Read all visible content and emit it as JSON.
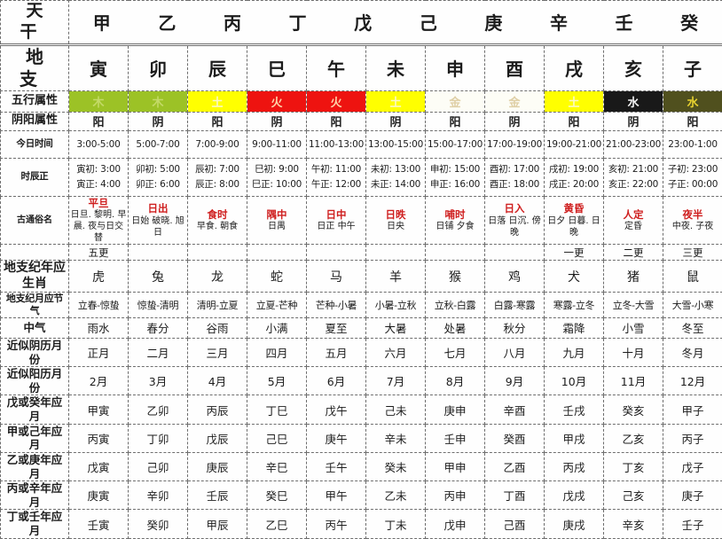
{
  "accent_colors": {
    "red_title": "#cf1f1f",
    "border": "#6e6e6e",
    "wood_bg": "#9cc226",
    "wood_fg": "#c4da68",
    "earth_bg": "#ffff00",
    "earth_fg": "#fbf8c8",
    "fire_bg": "#ee1310",
    "fire_fg": "#ffd2a8",
    "metal_bg": "#fdfdf6",
    "metal_fg": "#dfcfa5",
    "water1_bg": "#191919",
    "water1_fg": "#f5f5f5",
    "water2_bg": "#50501e",
    "water2_fg": "#e9d32f"
  },
  "table": {
    "stems_label": "天干",
    "stems": [
      "甲",
      "乙",
      "丙",
      "丁",
      "戊",
      "己",
      "庚",
      "辛",
      "壬",
      "癸"
    ],
    "branches_label": "地支",
    "branches": [
      "寅",
      "卯",
      "辰",
      "巳",
      "午",
      "未",
      "申",
      "酉",
      "戌",
      "亥",
      "子"
    ],
    "rows": [
      {
        "kind": "element",
        "label": "五行属性",
        "cells": [
          {
            "text": "木",
            "bg": "#9cc226",
            "fg": "#c4da68"
          },
          {
            "text": "木",
            "bg": "#9cc226",
            "fg": "#c4da68"
          },
          {
            "text": "土",
            "bg": "#ffff00",
            "fg": "#fbf8c8"
          },
          {
            "text": "火",
            "bg": "#ee1310",
            "fg": "#ffd2a8"
          },
          {
            "text": "火",
            "bg": "#ee1310",
            "fg": "#ffd2a8"
          },
          {
            "text": "土",
            "bg": "#ffff00",
            "fg": "#fbf8c8"
          },
          {
            "text": "金",
            "bg": "#fdfdf6",
            "fg": "#dfcfa5"
          },
          {
            "text": "金",
            "bg": "#fdfdf6",
            "fg": "#dfcfa5"
          },
          {
            "text": "土",
            "bg": "#ffff00",
            "fg": "#fbf8c8"
          },
          {
            "text": "水",
            "bg": "#191919",
            "fg": "#f5f5f5"
          },
          {
            "text": "水",
            "bg": "#50501e",
            "fg": "#e9d32f"
          }
        ]
      },
      {
        "kind": "yinyang",
        "label": "阴阳属性",
        "cells": [
          "阳",
          "阴",
          "阳",
          "阴",
          "阳",
          "阴",
          "阳",
          "阴",
          "阳",
          "阴",
          "阳"
        ]
      },
      {
        "kind": "time",
        "label": "今日时间",
        "cells": [
          "3:00-5:00",
          "5:00-7:00",
          "7:00-9:00",
          "9:00-11:00",
          "11:00-13:00",
          "13:00-15:00",
          "15:00-17:00",
          "17:00-19:00",
          "19:00-21:00",
          "21:00-23:00",
          "23:00-1:00"
        ]
      },
      {
        "kind": "shichen",
        "label": "时辰正",
        "cells": [
          {
            "l1": "寅初: 3:00",
            "l2": "寅正: 4:00"
          },
          {
            "l1": "卯初: 5:00",
            "l2": "卯正: 6:00"
          },
          {
            "l1": "辰初: 7:00",
            "l2": "辰正: 8:00"
          },
          {
            "l1": "巳初: 9:00",
            "l2": "巳正: 10:00"
          },
          {
            "l1": "午初: 11:00",
            "l2": "午正: 12:00"
          },
          {
            "l1": "未初: 13:00",
            "l2": "未正: 14:00"
          },
          {
            "l1": "申初: 15:00",
            "l2": "申正: 16:00"
          },
          {
            "l1": "酉初: 17:00",
            "l2": "酉正: 18:00"
          },
          {
            "l1": "戌初: 19:00",
            "l2": "戌正: 20:00"
          },
          {
            "l1": "亥初: 21:00",
            "l2": "亥正: 22:00"
          },
          {
            "l1": "子初: 23:00",
            "l2": "子正: 00:00"
          }
        ]
      },
      {
        "kind": "name",
        "label": "古通俗名",
        "cells": [
          {
            "title": "平旦",
            "sub": "日旦. 黎明. 早晨. 夜与日交替"
          },
          {
            "title": "日出",
            "sub": "日始 破晓. 旭日"
          },
          {
            "title": "食时",
            "sub": "早食. 朝食"
          },
          {
            "title": "隅中",
            "sub": "日禺"
          },
          {
            "title": "日中",
            "sub": "日正 中午"
          },
          {
            "title": "日昳",
            "sub": "日央"
          },
          {
            "title": "哺时",
            "sub": "日铺 夕食"
          },
          {
            "title": "日入",
            "sub": "日落 日沉. 傍晚"
          },
          {
            "title": "黄昏",
            "sub": "日夕 日暮. 日晚"
          },
          {
            "title": "人定",
            "sub": "定昏"
          },
          {
            "title": "夜半",
            "sub": "中夜. 子夜"
          }
        ]
      },
      {
        "kind": "geng",
        "label": "",
        "cells": [
          "五更",
          "",
          "",
          "",
          "",
          "",
          "",
          "",
          "一更",
          "二更",
          "三更"
        ]
      },
      {
        "kind": "zodiac",
        "label": "地支纪年应生肖",
        "cells": [
          "虎",
          "兔",
          "龙",
          "蛇",
          "马",
          "羊",
          "猴",
          "鸡",
          "犬",
          "猪",
          "鼠"
        ]
      },
      {
        "kind": "jieqi",
        "label": "地支纪月应节气",
        "cells": [
          "立春-惊蛰",
          "惊蛰-清明",
          "清明-立夏",
          "立夏-芒种",
          "芒种-小暑",
          "小暑-立秋",
          "立秋-白露",
          "白露-寒露",
          "寒露-立冬",
          "立冬-大雪",
          "大雪-小寒"
        ]
      },
      {
        "kind": "zhongqi",
        "label": "中气",
        "cells": [
          "雨水",
          "春分",
          "谷雨",
          "小满",
          "夏至",
          "大暑",
          "处暑",
          "秋分",
          "霜降",
          "小雪",
          "冬至"
        ]
      },
      {
        "kind": "lunar",
        "label": "近似阴历月份",
        "cells": [
          "正月",
          "二月",
          "三月",
          "四月",
          "五月",
          "六月",
          "七月",
          "八月",
          "九月",
          "十月",
          "冬月"
        ]
      },
      {
        "kind": "solar",
        "label": "近似阳历月份",
        "cells": [
          "2月",
          "3月",
          "4月",
          "5月",
          "6月",
          "7月",
          "8月",
          "9月",
          "10月",
          "11月",
          "12月"
        ]
      },
      {
        "kind": "ganzhi",
        "label": "戊或癸年应月",
        "cells": [
          "甲寅",
          "乙卯",
          "丙辰",
          "丁巳",
          "戊午",
          "己未",
          "庚申",
          "辛酉",
          "壬戌",
          "癸亥",
          "甲子"
        ]
      },
      {
        "kind": "ganzhi",
        "label": "甲或己年应月",
        "cells": [
          "丙寅",
          "丁卯",
          "戊辰",
          "己巳",
          "庚午",
          "辛未",
          "壬申",
          "癸酉",
          "甲戌",
          "乙亥",
          "丙子"
        ]
      },
      {
        "kind": "ganzhi",
        "label": "乙或庚年应月",
        "cells": [
          "戊寅",
          "己卯",
          "庚辰",
          "辛巳",
          "壬午",
          "癸未",
          "甲申",
          "乙酉",
          "丙戌",
          "丁亥",
          "戊子"
        ]
      },
      {
        "kind": "ganzhi",
        "label": "丙或辛年应月",
        "cells": [
          "庚寅",
          "辛卯",
          "壬辰",
          "癸巳",
          "甲午",
          "乙未",
          "丙申",
          "丁酉",
          "戊戌",
          "己亥",
          "庚子"
        ]
      },
      {
        "kind": "ganzhi",
        "label": "丁或壬年应月",
        "cells": [
          "壬寅",
          "癸卯",
          "甲辰",
          "乙巳",
          "丙午",
          "丁未",
          "戊申",
          "己酉",
          "庚戌",
          "辛亥",
          "壬子"
        ]
      }
    ]
  }
}
